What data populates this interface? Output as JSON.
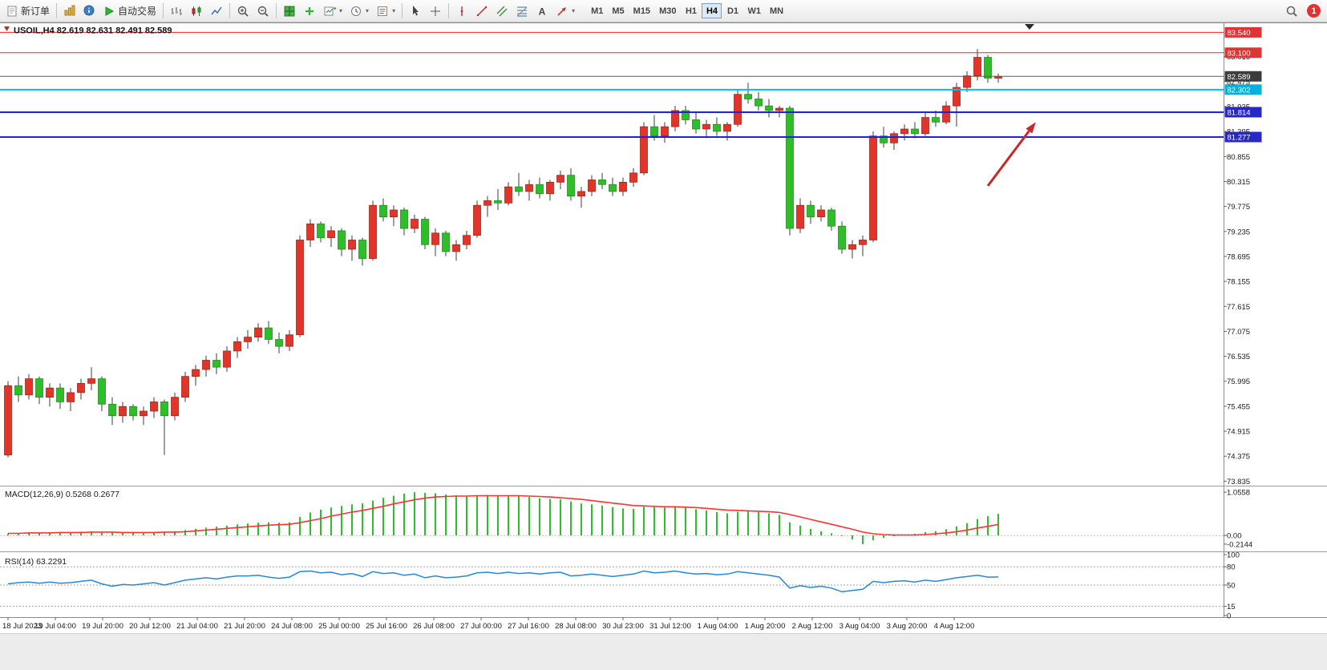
{
  "toolbar": {
    "new_order_label": "新订单",
    "autotrading_label": "自动交易",
    "pre_icons": [
      "chart-profiles",
      "data-window"
    ],
    "icon_groups": [
      [
        "bar-chart",
        "candlestick",
        "line-chart"
      ],
      [
        "zoom-in",
        "zoom-out"
      ],
      [
        "tile-windows",
        "indicators",
        "new-chart",
        "periods-clock",
        "templates"
      ],
      [
        "cursor",
        "crosshair"
      ],
      [
        "vertical-line",
        "trendline",
        "equidistant-channel",
        "fibonacci",
        "text",
        "arrows-tool"
      ]
    ],
    "dropdown_icons": [
      "new-chart",
      "periods-clock",
      "templates",
      "arrows-tool"
    ],
    "timeframes": [
      "M1",
      "M5",
      "M15",
      "M30",
      "H1",
      "H4",
      "D1",
      "W1",
      "MN"
    ],
    "active_timeframe": "H4",
    "notification_count": "1"
  },
  "chart": {
    "symbol_title": "USOIL,H4 82.619 82.631 82.491 82.589",
    "macd_label": "MACD(12,26,9)",
    "macd_values": "0.5268 0.2677",
    "rsi_label": "RSI(14)",
    "rsi_value": "63.2291"
  },
  "chart_data": {
    "type": "candlestick",
    "symbol": "USOIL",
    "timeframe": "H4",
    "ohlc": {
      "open": 82.619,
      "high": 82.631,
      "low": 82.491,
      "close": 82.589
    },
    "price_axis_labels": [
      "83.015",
      "82.475",
      "81.935",
      "81.395",
      "80.855",
      "80.315",
      "79.775",
      "79.235",
      "78.695",
      "78.155",
      "77.615",
      "77.075",
      "76.535",
      "75.995",
      "75.455",
      "74.915",
      "74.375",
      "73.835"
    ],
    "time_labels": [
      "18 Jul 2023",
      "19 Jul 04:00",
      "19 Jul 20:00",
      "20 Jul 12:00",
      "21 Jul 04:00",
      "21 Jul 20:00",
      "24 Jul 08:00",
      "25 Jul 00:00",
      "25 Jul 16:00",
      "26 Jul 08:00",
      "27 Jul 00:00",
      "27 Jul 16:00",
      "28 Jul 08:00",
      "30 Jul 23:00",
      "31 Jul 12:00",
      "1 Aug 04:00",
      "1 Aug 20:00",
      "2 Aug 12:00",
      "3 Aug 04:00",
      "3 Aug 20:00",
      "4 Aug 12:00"
    ],
    "candles": [
      [
        74.4,
        76.0,
        74.35,
        75.9
      ],
      [
        75.9,
        76.1,
        75.55,
        75.7
      ],
      [
        75.7,
        76.15,
        75.6,
        76.05
      ],
      [
        76.05,
        76.1,
        75.5,
        75.65
      ],
      [
        75.65,
        75.95,
        75.45,
        75.85
      ],
      [
        75.85,
        75.95,
        75.4,
        75.55
      ],
      [
        75.55,
        75.85,
        75.35,
        75.75
      ],
      [
        75.75,
        76.05,
        75.6,
        75.95
      ],
      [
        75.95,
        76.3,
        75.8,
        76.05
      ],
      [
        76.05,
        76.1,
        75.35,
        75.5
      ],
      [
        75.5,
        75.65,
        75.05,
        75.25
      ],
      [
        75.25,
        75.55,
        75.1,
        75.45
      ],
      [
        75.45,
        75.5,
        75.15,
        75.25
      ],
      [
        75.25,
        75.45,
        75.05,
        75.35
      ],
      [
        75.35,
        75.65,
        75.2,
        75.55
      ],
      [
        75.55,
        75.6,
        74.4,
        75.25
      ],
      [
        75.25,
        75.75,
        75.15,
        75.65
      ],
      [
        75.65,
        76.2,
        75.55,
        76.1
      ],
      [
        76.1,
        76.35,
        75.9,
        76.25
      ],
      [
        76.25,
        76.55,
        76.1,
        76.45
      ],
      [
        76.45,
        76.6,
        76.15,
        76.3
      ],
      [
        76.3,
        76.75,
        76.2,
        76.65
      ],
      [
        76.65,
        76.95,
        76.5,
        76.85
      ],
      [
        76.85,
        77.1,
        76.7,
        76.95
      ],
      [
        76.95,
        77.25,
        76.85,
        77.15
      ],
      [
        77.15,
        77.3,
        76.8,
        76.9
      ],
      [
        76.9,
        77.05,
        76.6,
        76.75
      ],
      [
        76.75,
        77.1,
        76.65,
        77.0
      ],
      [
        77.0,
        79.15,
        76.95,
        79.05
      ],
      [
        79.05,
        79.5,
        78.9,
        79.4
      ],
      [
        79.4,
        79.45,
        79.0,
        79.1
      ],
      [
        79.1,
        79.35,
        78.9,
        79.25
      ],
      [
        79.25,
        79.3,
        78.7,
        78.85
      ],
      [
        78.85,
        79.15,
        78.6,
        79.05
      ],
      [
        79.05,
        79.1,
        78.5,
        78.65
      ],
      [
        78.65,
        79.9,
        78.6,
        79.8
      ],
      [
        79.8,
        79.95,
        79.45,
        79.55
      ],
      [
        79.55,
        79.8,
        79.35,
        79.7
      ],
      [
        79.7,
        79.75,
        79.15,
        79.3
      ],
      [
        79.3,
        79.6,
        79.2,
        79.5
      ],
      [
        79.5,
        79.55,
        78.85,
        78.95
      ],
      [
        78.95,
        79.3,
        78.7,
        79.2
      ],
      [
        79.2,
        79.25,
        78.7,
        78.8
      ],
      [
        78.8,
        79.05,
        78.6,
        78.95
      ],
      [
        78.95,
        79.25,
        78.85,
        79.15
      ],
      [
        79.15,
        79.9,
        79.1,
        79.8
      ],
      [
        79.8,
        80.0,
        79.55,
        79.9
      ],
      [
        79.9,
        80.15,
        79.7,
        79.85
      ],
      [
        79.85,
        80.3,
        79.8,
        80.2
      ],
      [
        80.2,
        80.5,
        80.0,
        80.1
      ],
      [
        80.1,
        80.35,
        79.9,
        80.25
      ],
      [
        80.25,
        80.4,
        79.95,
        80.05
      ],
      [
        80.05,
        80.35,
        79.9,
        80.3
      ],
      [
        80.3,
        80.55,
        80.15,
        80.45
      ],
      [
        80.45,
        80.6,
        79.9,
        80.0
      ],
      [
        80.0,
        80.2,
        79.75,
        80.1
      ],
      [
        80.1,
        80.45,
        80.0,
        80.35
      ],
      [
        80.35,
        80.5,
        80.15,
        80.25
      ],
      [
        80.25,
        80.4,
        80.0,
        80.1
      ],
      [
        80.1,
        80.4,
        80.0,
        80.3
      ],
      [
        80.3,
        80.6,
        80.2,
        80.5
      ],
      [
        80.5,
        81.6,
        80.45,
        81.5
      ],
      [
        81.5,
        81.75,
        81.2,
        81.3
      ],
      [
        81.3,
        81.6,
        81.15,
        81.5
      ],
      [
        81.5,
        81.95,
        81.4,
        81.85
      ],
      [
        81.85,
        81.95,
        81.55,
        81.65
      ],
      [
        81.65,
        81.8,
        81.35,
        81.45
      ],
      [
        81.45,
        81.65,
        81.25,
        81.55
      ],
      [
        81.55,
        81.7,
        81.3,
        81.4
      ],
      [
        81.4,
        81.6,
        81.2,
        81.55
      ],
      [
        81.55,
        82.3,
        81.5,
        82.2
      ],
      [
        82.2,
        82.45,
        82.0,
        82.1
      ],
      [
        82.1,
        82.25,
        81.85,
        81.95
      ],
      [
        81.95,
        82.1,
        81.7,
        81.85
      ],
      [
        81.85,
        81.95,
        81.7,
        81.9
      ],
      [
        81.9,
        81.95,
        79.15,
        79.3
      ],
      [
        79.3,
        79.95,
        79.2,
        79.8
      ],
      [
        79.8,
        79.9,
        79.4,
        79.55
      ],
      [
        79.55,
        79.8,
        79.45,
        79.7
      ],
      [
        79.7,
        79.75,
        79.25,
        79.35
      ],
      [
        79.35,
        79.45,
        78.75,
        78.85
      ],
      [
        78.85,
        79.05,
        78.65,
        78.95
      ],
      [
        78.95,
        79.15,
        78.7,
        79.05
      ],
      [
        79.05,
        81.4,
        79.0,
        81.3
      ],
      [
        81.3,
        81.5,
        81.05,
        81.15
      ],
      [
        81.15,
        81.4,
        81.0,
        81.35
      ],
      [
        81.35,
        81.55,
        81.2,
        81.45
      ],
      [
        81.45,
        81.6,
        81.25,
        81.35
      ],
      [
        81.35,
        81.8,
        81.3,
        81.7
      ],
      [
        81.7,
        81.85,
        81.5,
        81.6
      ],
      [
        81.6,
        82.05,
        81.55,
        81.95
      ],
      [
        81.95,
        82.45,
        81.5,
        82.35
      ],
      [
        82.35,
        82.7,
        82.25,
        82.6
      ],
      [
        82.6,
        83.18,
        82.5,
        83.0
      ],
      [
        83.0,
        83.05,
        82.45,
        82.55
      ],
      [
        82.55,
        82.65,
        82.45,
        82.589
      ]
    ],
    "colors": {
      "up": "#e23428",
      "up_border": "#9e2218",
      "down": "#2fbe2a",
      "down_border": "#1b8c17",
      "wick": "#3c3c3c"
    },
    "hlines": [
      {
        "label": "83.540",
        "price": 83.54,
        "color": "#ff2020",
        "width": 1,
        "badge_color": "#e03434"
      },
      {
        "label": "83.100",
        "price": 83.1,
        "color": "#ff2020",
        "width": 1,
        "badge_color": "#e03434"
      },
      {
        "label": "82.302",
        "price": 82.302,
        "color": "#00c0e8",
        "width": 2,
        "badge_color": "#00b2dc"
      },
      {
        "label": "81.814",
        "price": 81.814,
        "color": "#2020dd",
        "width": 2,
        "badge_color": "#2828c8"
      },
      {
        "label": "81.277",
        "price": 81.277,
        "color": "#2020dd",
        "width": 2,
        "badge_color": "#2828c8"
      }
    ],
    "current_price": {
      "label": "82.589",
      "value": 82.589,
      "line_color": "#5a5a5a",
      "badge_color": "#3c3c3c"
    },
    "macd": {
      "name": "MACD(12,26,9)",
      "main_value": 0.5268,
      "signal_value": 0.2677,
      "axis_labels": [
        "1.0558",
        "0.00",
        "-0.2144"
      ],
      "hist_color": "#2dbe2d",
      "signal_color": "#ff3232",
      "hist": [
        0.04,
        0.05,
        0.06,
        0.06,
        0.07,
        0.07,
        0.08,
        0.09,
        0.1,
        0.09,
        0.07,
        0.06,
        0.06,
        0.07,
        0.08,
        0.08,
        0.1,
        0.13,
        0.16,
        0.19,
        0.21,
        0.24,
        0.27,
        0.29,
        0.31,
        0.32,
        0.31,
        0.32,
        0.45,
        0.56,
        0.63,
        0.68,
        0.72,
        0.76,
        0.78,
        0.85,
        0.92,
        0.97,
        1.02,
        1.0558,
        1.04,
        1.03,
        1.0,
        0.98,
        0.96,
        0.98,
        0.99,
        0.97,
        0.98,
        0.96,
        0.94,
        0.91,
        0.89,
        0.88,
        0.83,
        0.78,
        0.76,
        0.73,
        0.69,
        0.66,
        0.65,
        0.7,
        0.69,
        0.68,
        0.7,
        0.68,
        0.64,
        0.61,
        0.57,
        0.54,
        0.58,
        0.59,
        0.57,
        0.54,
        0.5,
        0.32,
        0.24,
        0.16,
        0.1,
        0.05,
        -0.02,
        -0.1,
        -0.2144,
        -0.12,
        -0.06,
        -0.02,
        0.02,
        0.04,
        0.08,
        0.1,
        0.15,
        0.22,
        0.3,
        0.4,
        0.47,
        0.5268
      ],
      "signal": [
        0.05,
        0.05,
        0.06,
        0.06,
        0.06,
        0.07,
        0.07,
        0.07,
        0.08,
        0.08,
        0.08,
        0.07,
        0.07,
        0.07,
        0.07,
        0.08,
        0.08,
        0.09,
        0.11,
        0.13,
        0.15,
        0.17,
        0.19,
        0.21,
        0.23,
        0.25,
        0.26,
        0.27,
        0.31,
        0.36,
        0.41,
        0.47,
        0.52,
        0.57,
        0.61,
        0.66,
        0.71,
        0.77,
        0.82,
        0.87,
        0.91,
        0.94,
        0.95,
        0.96,
        0.96,
        0.97,
        0.97,
        0.97,
        0.97,
        0.97,
        0.96,
        0.95,
        0.94,
        0.92,
        0.9,
        0.88,
        0.85,
        0.82,
        0.79,
        0.76,
        0.73,
        0.72,
        0.71,
        0.7,
        0.7,
        0.69,
        0.68,
        0.66,
        0.64,
        0.62,
        0.61,
        0.6,
        0.59,
        0.58,
        0.56,
        0.51,
        0.45,
        0.39,
        0.33,
        0.27,
        0.21,
        0.15,
        0.08,
        0.04,
        0.02,
        0.01,
        0.01,
        0.01,
        0.02,
        0.04,
        0.06,
        0.09,
        0.13,
        0.18,
        0.22,
        0.2677
      ]
    },
    "rsi": {
      "name": "RSI(14)",
      "value": 63.2291,
      "levels": [
        80,
        50,
        15
      ],
      "axis_labels": [
        "100",
        "80",
        "50",
        "15",
        "0"
      ],
      "line_color": "#2787d7",
      "values": [
        52,
        54,
        55,
        53,
        55,
        53,
        54,
        56,
        58,
        52,
        48,
        51,
        50,
        52,
        54,
        50,
        54,
        58,
        60,
        62,
        60,
        63,
        65,
        65,
        66,
        63,
        61,
        63,
        72,
        73,
        70,
        71,
        67,
        69,
        64,
        72,
        69,
        70,
        66,
        68,
        62,
        65,
        62,
        63,
        65,
        70,
        71,
        69,
        71,
        69,
        70,
        68,
        70,
        71,
        65,
        66,
        68,
        66,
        64,
        66,
        68,
        73,
        70,
        71,
        73,
        70,
        68,
        69,
        67,
        68,
        72,
        70,
        68,
        66,
        63,
        45,
        49,
        46,
        48,
        45,
        39,
        41,
        43,
        56,
        54,
        56,
        57,
        55,
        58,
        56,
        59,
        62,
        64,
        66,
        63,
        63.23
      ]
    },
    "arrow_annotation": {
      "from_bar": 94,
      "from_price": 80.22,
      "to_bar": 98.6,
      "to_price": 81.6,
      "color": "#c62b2b"
    },
    "scroll_marker_bar": 98
  }
}
